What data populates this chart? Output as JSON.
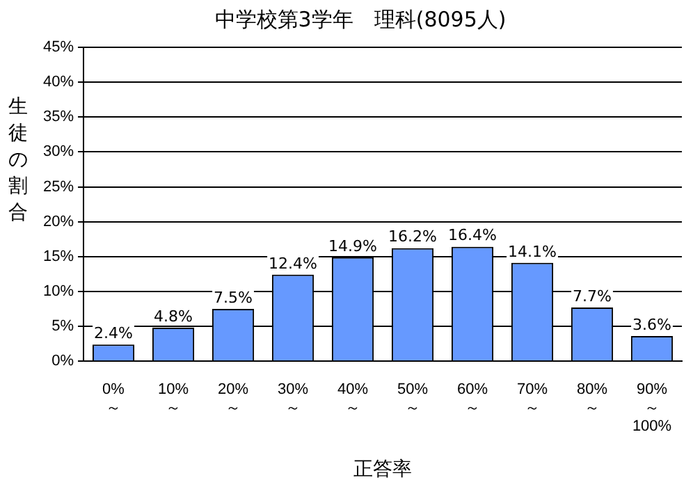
{
  "chart_data": {
    "type": "bar",
    "title": "中学校第3学年　理科(8095人)",
    "xlabel": "正答率",
    "ylabel": "生徒の割合",
    "categories": [
      "0%\n～",
      "10%\n～",
      "20%\n～",
      "30%\n～",
      "40%\n～",
      "50%\n～",
      "60%\n～",
      "70%\n～",
      "80%\n～",
      "90%\n～\n100%"
    ],
    "values": [
      2.4,
      4.8,
      7.5,
      12.4,
      14.9,
      16.2,
      16.4,
      14.1,
      7.7,
      3.6
    ],
    "value_labels": [
      "2.4%",
      "4.8%",
      "7.5%",
      "12.4%",
      "14.9%",
      "16.2%",
      "16.4%",
      "14.1%",
      "7.7%",
      "3.6%"
    ],
    "color": "#6699ff",
    "ylim": [
      0,
      45
    ],
    "yticks": [
      {
        "value": 0,
        "label": "0%"
      },
      {
        "value": 5,
        "label": "5%"
      },
      {
        "value": 10,
        "label": "10%"
      },
      {
        "value": 15,
        "label": "15%"
      },
      {
        "value": 20,
        "label": "20%"
      },
      {
        "value": 25,
        "label": "25%"
      },
      {
        "value": 30,
        "label": "30%"
      },
      {
        "value": 35,
        "label": "35%"
      },
      {
        "value": 40,
        "label": "40%"
      },
      {
        "value": 45,
        "label": "45%"
      }
    ],
    "grid": "y",
    "legend": false
  }
}
